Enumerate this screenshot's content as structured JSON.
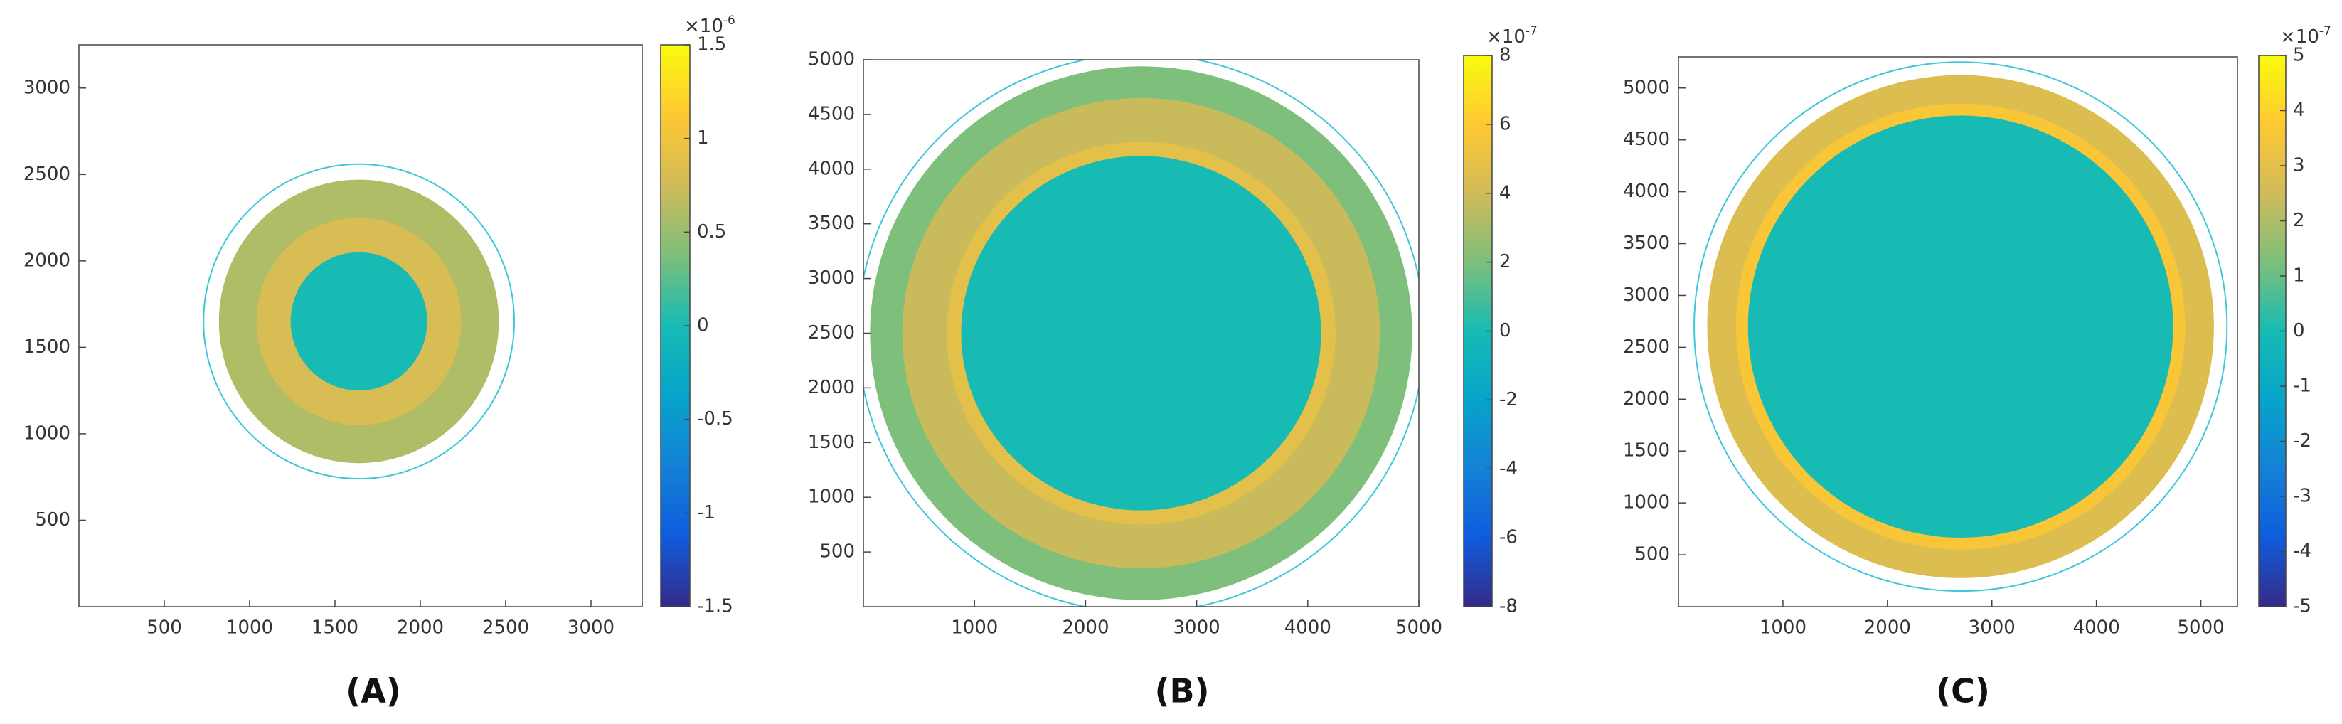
{
  "chart_data": [
    {
      "type": "image",
      "label": "(A)",
      "xlim": [
        0,
        3300
      ],
      "ylim": [
        0,
        3250
      ],
      "xticks": [
        500,
        1000,
        1500,
        2000,
        2500,
        3000
      ],
      "yticks": [
        500,
        1000,
        1500,
        2000,
        2500,
        3000
      ],
      "clim": [
        -1.5,
        1.5
      ],
      "cticks": [
        -1.5,
        -1,
        -0.5,
        0,
        0.5,
        1,
        1.5
      ],
      "colorbar_scale": "×10",
      "colorbar_exponent": "-6",
      "discs": [
        {
          "center": [
            1640,
            1650
          ],
          "radius": 820,
          "value": 0.6
        },
        {
          "center": [
            1640,
            1650
          ],
          "radius": 600,
          "value": 0.8
        },
        {
          "center": [
            1640,
            1650
          ],
          "radius": 400,
          "value": 0
        }
      ],
      "outline": {
        "center": [
          1640,
          1650
        ],
        "radius": 910,
        "color": "#3cc8d8"
      }
    },
    {
      "type": "image",
      "label": "(B)",
      "xlim": [
        0,
        5000
      ],
      "ylim": [
        0,
        5000
      ],
      "xticks": [
        1000,
        2000,
        3000,
        4000,
        5000
      ],
      "yticks": [
        500,
        1000,
        1500,
        2000,
        2500,
        3000,
        3500,
        4000,
        4500,
        5000
      ],
      "clim": [
        -8,
        8
      ],
      "cticks": [
        -8,
        -6,
        -4,
        -2,
        0,
        2,
        4,
        6,
        8
      ],
      "colorbar_scale": "×10",
      "colorbar_exponent": "-7",
      "discs": [
        {
          "center": [
            2500,
            2500
          ],
          "radius": 2440,
          "value": 2
        },
        {
          "center": [
            2500,
            2500
          ],
          "radius": 2150,
          "value": 3.8
        },
        {
          "center": [
            2500,
            2500
          ],
          "radius": 1750,
          "value": 4.8
        },
        {
          "center": [
            2500,
            2500
          ],
          "radius": 1620,
          "value": 0
        }
      ],
      "outline": {
        "center": [
          2500,
          2500
        ],
        "radius": 2550,
        "color": "#3cc8d8"
      }
    },
    {
      "type": "image",
      "label": "(C)",
      "xlim": [
        0,
        5350
      ],
      "ylim": [
        0,
        5300
      ],
      "xticks": [
        1000,
        2000,
        3000,
        4000,
        5000
      ],
      "yticks": [
        500,
        1000,
        1500,
        2000,
        2500,
        3000,
        3500,
        4000,
        4500,
        5000
      ],
      "clim": [
        -5,
        5
      ],
      "cticks": [
        -5,
        -4,
        -3,
        -2,
        -1,
        0,
        1,
        2,
        3,
        4,
        5
      ],
      "colorbar_scale": "×10",
      "colorbar_exponent": "-7",
      "discs": [
        {
          "center": [
            2700,
            2700
          ],
          "radius": 2425,
          "value": 2.8
        },
        {
          "center": [
            2700,
            2700
          ],
          "radius": 2150,
          "value": 3.6
        },
        {
          "center": [
            2700,
            2700
          ],
          "radius": 2035,
          "value": 0
        }
      ],
      "outline": {
        "center": [
          2700,
          2700
        ],
        "radius": 2550,
        "color": "#3cc8d8"
      }
    }
  ]
}
